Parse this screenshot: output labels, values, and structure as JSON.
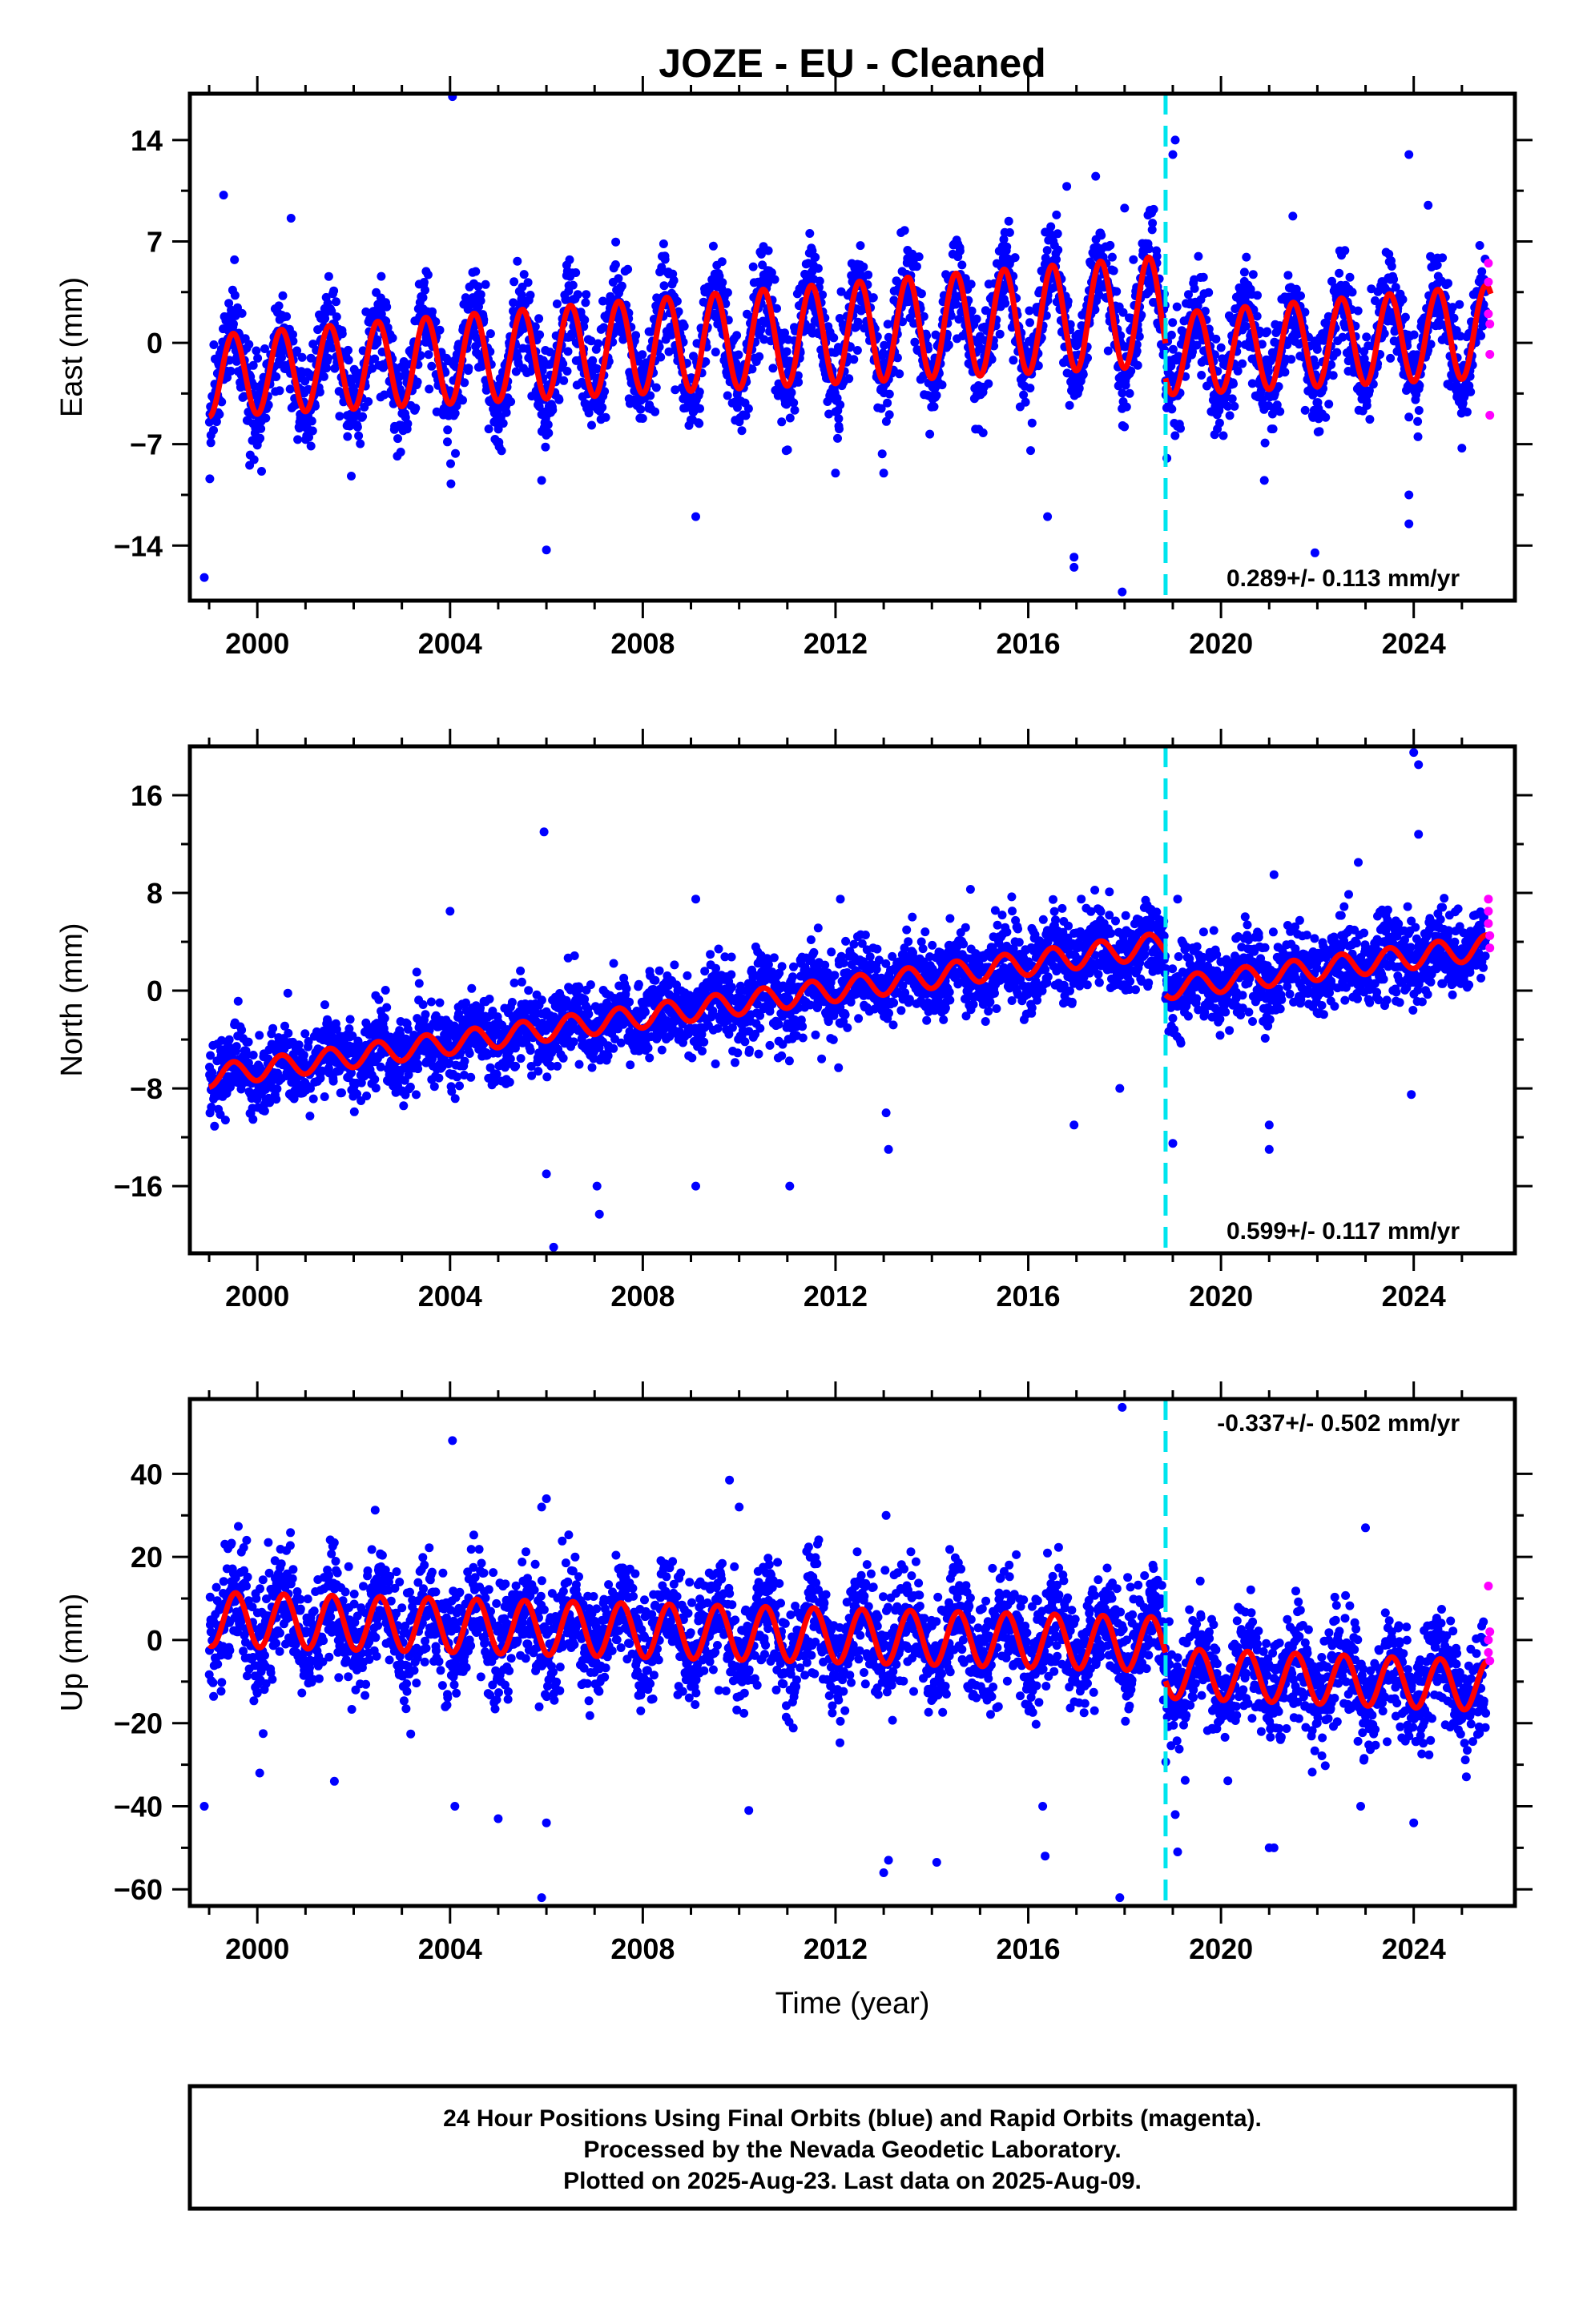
{
  "title": "JOZE  - EU - Cleaned",
  "colors": {
    "final_orbits": "#0000ff",
    "rapid_orbits": "#ff00ff",
    "model_fit": "#ff0000",
    "equipment_change": "#00e5ee",
    "frame": "#000000"
  },
  "chart_data": [
    {
      "type": "scatter",
      "name": "east",
      "title": "",
      "xlabel": "",
      "ylabel": "East (mm)",
      "xlim": [
        1998.6,
        2026.1
      ],
      "ylim": [
        -17.8,
        17.2
      ],
      "x_ticks": [
        2000,
        2004,
        2008,
        2012,
        2016,
        2020,
        2024
      ],
      "x_tick_labels": [
        "2000",
        "2004",
        "2008",
        "2012",
        "2016",
        "2020",
        "2024"
      ],
      "y_ticks": [
        -14,
        -7,
        0,
        7,
        14
      ],
      "y_tick_labels": [
        "−14",
        "−7",
        "0",
        "7",
        "14"
      ],
      "rate_text": "0.289+/- 0.113 mm/yr",
      "rate_position": "bottom-right",
      "offset_epochs": [
        2018.85
      ],
      "model": {
        "segments": [
          {
            "start": 1999.0,
            "end": 2018.85,
            "level_start": -2.3,
            "level_end": 2.2,
            "amplitude_start": 2.8,
            "amplitude_end": 3.8
          },
          {
            "start": 2018.85,
            "end": 2025.6,
            "level_start": -0.8,
            "level_end": 0.8,
            "amplitude_start": 2.8,
            "amplitude_end": 3.2
          }
        ],
        "phase_peak_year_fraction": 0.5
      },
      "final_orbit_scatter": {
        "start": 1999.0,
        "end": 2025.5,
        "noise_sd": 1.7,
        "count": 3600
      },
      "outliers": [
        [
          2004.05,
          17.0
        ],
        [
          1999.3,
          10.2
        ],
        [
          2000.7,
          8.6
        ],
        [
          2016.8,
          10.8
        ],
        [
          2017.4,
          11.5
        ],
        [
          2018.0,
          9.3
        ],
        [
          2019.05,
          14.0
        ],
        [
          2019.0,
          13.0
        ],
        [
          2023.9,
          13.0
        ],
        [
          2024.3,
          9.5
        ],
        [
          1998.9,
          -16.2
        ],
        [
          2006.0,
          -14.3
        ],
        [
          2009.1,
          -12.0
        ],
        [
          2016.4,
          -12.0
        ],
        [
          2016.95,
          -14.8
        ],
        [
          2016.95,
          -15.5
        ],
        [
          2017.95,
          -17.2
        ],
        [
          2021.95,
          -14.5
        ],
        [
          2023.9,
          -12.5
        ],
        [
          2005.9,
          -9.5
        ],
        [
          2001.95,
          -9.2
        ],
        [
          2012.0,
          -9.0
        ],
        [
          2013.0,
          -9.0
        ],
        [
          2020.9,
          -9.5
        ],
        [
          2023.9,
          -10.5
        ]
      ],
      "rapid_points": [
        [
          2025.55,
          5.5
        ],
        [
          2025.55,
          4.2
        ],
        [
          2025.55,
          2.0
        ],
        [
          2025.58,
          1.3
        ],
        [
          2025.58,
          -0.8
        ],
        [
          2025.58,
          -5.0
        ]
      ]
    },
    {
      "type": "scatter",
      "name": "north",
      "title": "",
      "xlabel": "",
      "ylabel": "North (mm)",
      "xlim": [
        1998.6,
        2026.1
      ],
      "ylim": [
        -21.5,
        20.0
      ],
      "x_ticks": [
        2000,
        2004,
        2008,
        2012,
        2016,
        2020,
        2024
      ],
      "x_tick_labels": [
        "2000",
        "2004",
        "2008",
        "2012",
        "2016",
        "2020",
        "2024"
      ],
      "y_ticks": [
        -16,
        -8,
        0,
        8,
        16
      ],
      "y_tick_labels": [
        "−16",
        "−8",
        "0",
        "8",
        "16"
      ],
      "rate_text": "0.599+/- 0.117 mm/yr",
      "rate_position": "bottom-right",
      "offset_epochs": [
        2018.85
      ],
      "model": {
        "segments": [
          {
            "start": 1999.0,
            "end": 2018.85,
            "level_start": -7.0,
            "level_end": 3.8,
            "amplitude_start": 0.9,
            "amplitude_end": 1.0
          },
          {
            "start": 2018.85,
            "end": 2025.6,
            "level_start": 0.2,
            "level_end": 3.6,
            "amplitude_start": 0.9,
            "amplitude_end": 1.0
          }
        ],
        "phase_peak_year_fraction": 0.5
      },
      "final_orbit_scatter": {
        "start": 1999.0,
        "end": 2025.5,
        "noise_sd": 1.6,
        "count": 3600
      },
      "outliers": [
        [
          2005.95,
          13.0
        ],
        [
          2006.15,
          -21.0
        ],
        [
          2006.0,
          -15.0
        ],
        [
          2007.05,
          -16.0
        ],
        [
          2007.1,
          -18.3
        ],
        [
          2009.1,
          -16.0
        ],
        [
          2011.05,
          -16.0
        ],
        [
          2013.1,
          -13.0
        ],
        [
          2013.05,
          -10.0
        ],
        [
          2016.95,
          -11.0
        ],
        [
          2017.9,
          -8.0
        ],
        [
          2019.0,
          -12.5
        ],
        [
          2021.0,
          -13.0
        ],
        [
          2021.0,
          -11.0
        ],
        [
          2023.95,
          -8.5
        ],
        [
          2024.0,
          19.5
        ],
        [
          2024.1,
          18.5
        ],
        [
          2024.1,
          12.8
        ],
        [
          2022.85,
          10.5
        ],
        [
          2021.1,
          9.5
        ],
        [
          2017.1,
          7.5
        ],
        [
          2012.1,
          7.5
        ],
        [
          2009.1,
          7.5
        ],
        [
          2014.8,
          8.3
        ],
        [
          2019.1,
          7.5
        ],
        [
          2004.0,
          6.5
        ]
      ],
      "rapid_points": [
        [
          2025.55,
          7.5
        ],
        [
          2025.55,
          6.5
        ],
        [
          2025.55,
          5.5
        ],
        [
          2025.58,
          4.5
        ],
        [
          2025.58,
          3.5
        ]
      ]
    },
    {
      "type": "scatter",
      "name": "up",
      "title": "",
      "xlabel": "Time (year)",
      "ylabel": "Up (mm)",
      "xlim": [
        1998.6,
        2026.1
      ],
      "ylim": [
        -64.0,
        58.0
      ],
      "x_ticks": [
        2000,
        2004,
        2008,
        2012,
        2016,
        2020,
        2024
      ],
      "x_tick_labels": [
        "2000",
        "2004",
        "2008",
        "2012",
        "2016",
        "2020",
        "2024"
      ],
      "y_ticks": [
        -60,
        -40,
        -20,
        0,
        20,
        40
      ],
      "y_tick_labels": [
        "−60",
        "−40",
        "−20",
        "0",
        "20",
        "40"
      ],
      "rate_text": "-0.337+/- 0.502 mm/yr",
      "rate_position": "top-right",
      "offset_epochs": [
        2018.85
      ],
      "model": {
        "segments": [
          {
            "start": 1999.0,
            "end": 2018.85,
            "level_start": 5.0,
            "level_end": -1.0,
            "amplitude_start": 6.5,
            "amplitude_end": 6.5
          },
          {
            "start": 2018.85,
            "end": 2025.6,
            "level_start": -8.0,
            "level_end": -11.0,
            "amplitude_start": 6.0,
            "amplitude_end": 6.0
          }
        ],
        "phase_peak_year_fraction": 0.55
      },
      "final_orbit_scatter": {
        "start": 1999.0,
        "end": 2025.5,
        "noise_sd": 6.8,
        "count": 3600
      },
      "outliers": [
        [
          2004.05,
          48.0
        ],
        [
          2009.8,
          38.5
        ],
        [
          2006.0,
          34.0
        ],
        [
          2005.9,
          32.0
        ],
        [
          2010.0,
          32.0
        ],
        [
          2023.0,
          27.0
        ],
        [
          2013.05,
          30.0
        ],
        [
          1998.9,
          -40.0
        ],
        [
          2004.1,
          -40.0
        ],
        [
          2005.9,
          -62.0
        ],
        [
          2006.0,
          -44.0
        ],
        [
          2010.2,
          -41.0
        ],
        [
          2013.0,
          -56.0
        ],
        [
          2013.1,
          -53.0
        ],
        [
          2014.1,
          -53.5
        ],
        [
          2016.35,
          -52.0
        ],
        [
          2016.3,
          -40.0
        ],
        [
          2017.9,
          -62.0
        ],
        [
          2017.95,
          56.0
        ],
        [
          2019.1,
          -51.0
        ],
        [
          2019.05,
          -42.0
        ],
        [
          2021.0,
          -50.0
        ],
        [
          2021.1,
          -50.0
        ],
        [
          2022.9,
          -40.0
        ],
        [
          2024.0,
          -44.0
        ],
        [
          2005.0,
          -43.0
        ],
        [
          2001.6,
          -34.0
        ],
        [
          2000.05,
          -32.0
        ]
      ],
      "rapid_points": [
        [
          2025.55,
          13.0
        ],
        [
          2025.55,
          0.0
        ],
        [
          2025.55,
          -3.0
        ],
        [
          2025.58,
          -5.0
        ],
        [
          2025.58,
          2.0
        ]
      ]
    }
  ],
  "footer": {
    "line1": "24 Hour Positions Using Final Orbits (blue) and Rapid Orbits (magenta).",
    "line2": "Processed by the Nevada Geodetic Laboratory.",
    "line3": "Plotted on 2025-Aug-23. Last data on 2025-Aug-09."
  }
}
